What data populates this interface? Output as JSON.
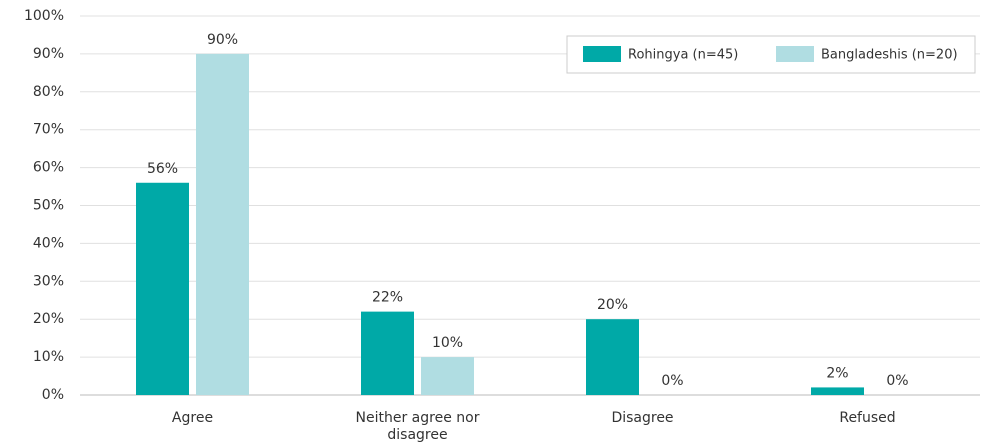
{
  "chart_data": {
    "type": "bar",
    "categories": [
      "Agree",
      "Neither agree nor disagree",
      "Disagree",
      "Refused"
    ],
    "series": [
      {
        "name": "Rohingya (n=45)",
        "color": "#00a9a7",
        "values": [
          56,
          22,
          20,
          2
        ],
        "value_labels": [
          "56%",
          "22%",
          "20%",
          "2%"
        ]
      },
      {
        "name": "Bangladeshis (n=20)",
        "color": "#b0dde2",
        "values": [
          90,
          10,
          0,
          0
        ],
        "value_labels": [
          "90%",
          "10%",
          "0%",
          "0%"
        ]
      }
    ],
    "ylim": [
      0,
      100
    ],
    "yticks": [
      {
        "value": 0,
        "label": "0%"
      },
      {
        "value": 10,
        "label": "10%"
      },
      {
        "value": 20,
        "label": "20%"
      },
      {
        "value": 30,
        "label": "30%"
      },
      {
        "value": 40,
        "label": "40%"
      },
      {
        "value": 50,
        "label": "50%"
      },
      {
        "value": 60,
        "label": "60%"
      },
      {
        "value": 70,
        "label": "70%"
      },
      {
        "value": 80,
        "label": "80%"
      },
      {
        "value": 90,
        "label": "90%"
      },
      {
        "value": 100,
        "label": "100%"
      }
    ],
    "grid": true,
    "legend": "upper right"
  }
}
